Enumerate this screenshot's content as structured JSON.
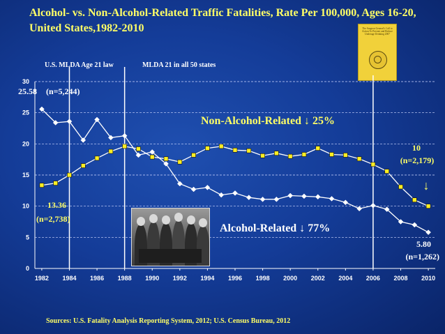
{
  "title": "Alcohol- vs. Non-Alcohol-Related Traffic Fatalities, Rate Per 100,000, Ages 16-20, United States,1982-2010",
  "annotations": {
    "law_label": "U.S. MLDA Age 21 law",
    "mlda_label": "MLDA 21 in all 50 states",
    "non_alcohol_label": "Non-Alcohol-Related ↓ 25%",
    "alcohol_label": "Alcohol-Related ↓ 77%",
    "alc_start_value": "25.58",
    "alc_start_n": "(n=5,244)",
    "non_start_value": "13.36",
    "non_start_n": "(n=2,738)",
    "non_end_value": "10",
    "non_end_n": "(n=2,179)",
    "alc_end_value": "5.80",
    "alc_end_n": "(n=1,262)",
    "arrow": "↓"
  },
  "sources": "Sources: U.S. Fatality Analysis Reporting System, 2012; U.S. Census Bureau, 2012",
  "book_text": "The Surgeon General's Call to Action To Prevent and Reduce Underage Drinking 2007",
  "colors": {
    "background": "#143c98",
    "text_yellow": "#ffff66",
    "line": "#ffffff",
    "marker": "#ffee22"
  },
  "chart_data": {
    "type": "line",
    "x": [
      1982,
      1983,
      1984,
      1985,
      1986,
      1987,
      1988,
      1989,
      1990,
      1991,
      1992,
      1993,
      1994,
      1995,
      1996,
      1997,
      1998,
      1999,
      2000,
      2001,
      2002,
      2003,
      2004,
      2005,
      2006,
      2007,
      2008,
      2009,
      2010
    ],
    "x_ticks": [
      1982,
      1984,
      1986,
      1988,
      1990,
      1992,
      1994,
      1996,
      1998,
      2000,
      2002,
      2004,
      2006,
      2008,
      2010
    ],
    "y_ticks": [
      0,
      5,
      10,
      15,
      20,
      25,
      30
    ],
    "ylim": [
      0,
      30
    ],
    "xlim": [
      1981.5,
      2010.5
    ],
    "grid": true,
    "vertical_lines": [
      1984,
      1988,
      2006
    ],
    "series": [
      {
        "name": "Alcohol-Related",
        "marker": "diamond",
        "values": [
          25.58,
          23.4,
          23.6,
          20.6,
          23.9,
          21.0,
          21.3,
          18.2,
          18.7,
          16.8,
          13.6,
          12.7,
          13.0,
          11.8,
          12.1,
          11.4,
          11.1,
          11.1,
          11.7,
          11.6,
          11.5,
          11.2,
          10.6,
          9.6,
          10.1,
          9.5,
          7.5,
          7.0,
          5.8
        ]
      },
      {
        "name": "Non-Alcohol-Related",
        "marker": "square",
        "values": [
          13.36,
          13.7,
          15.0,
          16.5,
          17.7,
          18.8,
          19.6,
          19.2,
          17.9,
          17.6,
          17.1,
          18.2,
          19.3,
          19.6,
          19.0,
          18.9,
          18.1,
          18.5,
          18.0,
          18.3,
          19.3,
          18.3,
          18.2,
          17.6,
          16.7,
          15.6,
          13.1,
          11.0,
          10.0
        ]
      }
    ]
  }
}
